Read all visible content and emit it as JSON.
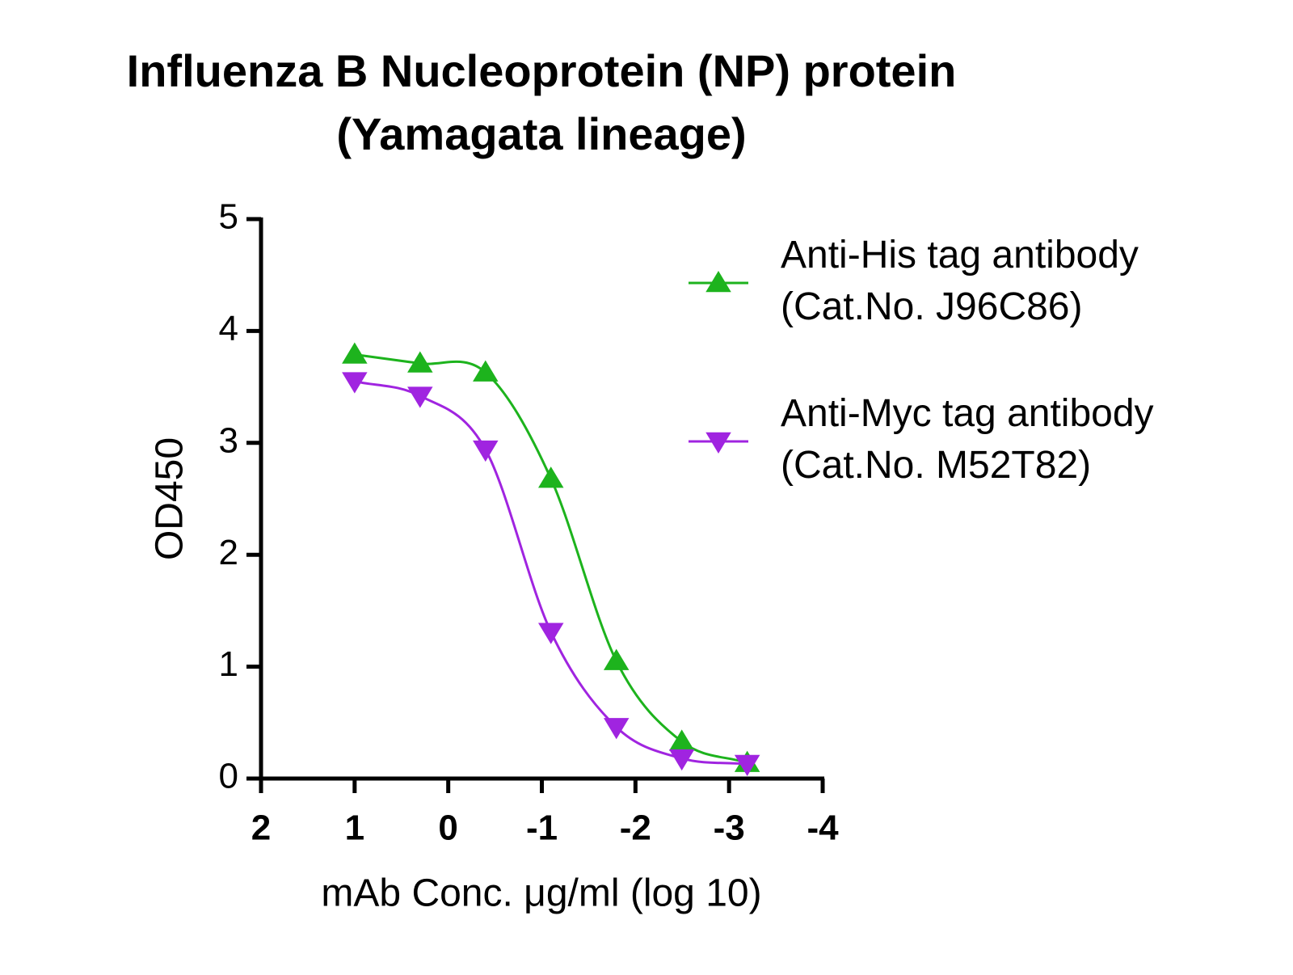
{
  "chart_data": {
    "type": "scatter",
    "title": [
      "Influenza B Nucleoprotein (NP) protein",
      "(Yamagata lineage)"
    ],
    "x_label": "mAb Conc. μg/ml (log 10)",
    "y_label": "OD450",
    "x": [
      1,
      0.301,
      -0.398,
      -1.097,
      -1.796,
      -2.495,
      -3.194
    ],
    "xlim": [
      2,
      -4
    ],
    "xticks": [
      2,
      1,
      0,
      -1,
      -2,
      -3,
      -4
    ],
    "ylim": [
      0,
      5
    ],
    "yticks": [
      0,
      1,
      2,
      3,
      4,
      5
    ],
    "fit_curve": true,
    "legend": "right",
    "series": [
      {
        "name": "Anti-His tag antibody\n(Cat.No. J96C86)",
        "color": "#1db31d",
        "marker": "triangle-up",
        "values": [
          3.79,
          3.71,
          3.63,
          2.68,
          1.05,
          0.33,
          0.14
        ]
      },
      {
        "name": "Anti-Myc tag antibody\n(Cat.No. M52T82)",
        "color": "#a024e0",
        "marker": "triangle-down",
        "values": [
          3.55,
          3.42,
          2.94,
          1.31,
          0.46,
          0.18,
          0.13
        ]
      }
    ]
  }
}
